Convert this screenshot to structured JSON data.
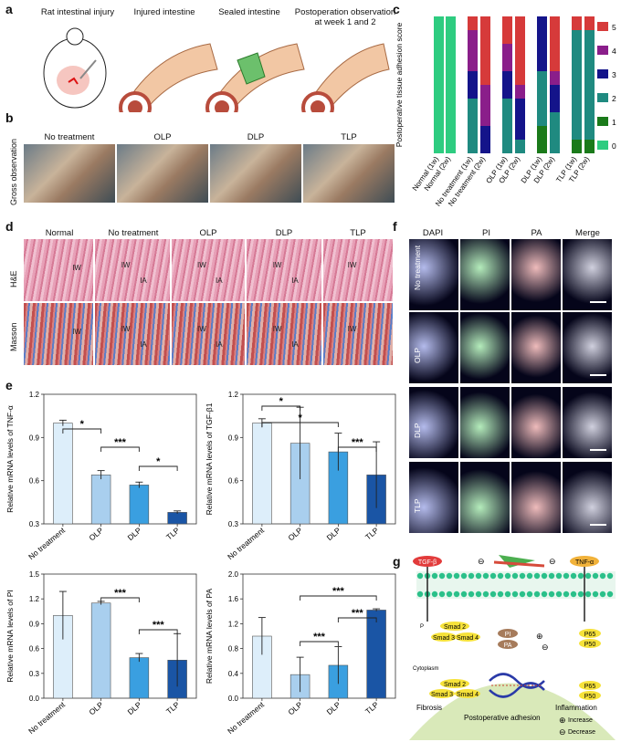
{
  "panels": {
    "a": "a",
    "b": "b",
    "c": "c",
    "d": "d",
    "e": "e",
    "f": "f",
    "g": "g"
  },
  "panel_a": {
    "steps": [
      "Rat intestinal injury",
      "Injured intestine",
      "Sealed intestine",
      "Postoperation observation\nat week 1 and 2"
    ]
  },
  "panel_b": {
    "row_label": "Gross observation",
    "groups": [
      "No treatment",
      "OLP",
      "DLP",
      "TLP"
    ]
  },
  "panel_d": {
    "groups": [
      "Normal",
      "No treatment",
      "OLP",
      "DLP",
      "TLP"
    ],
    "rows": [
      "H&E",
      "Masson"
    ],
    "tissue_labels": {
      "iw": "IW",
      "ia": "IA"
    }
  },
  "panel_f": {
    "channels": [
      "DAPI",
      "PI",
      "PA",
      "Merge"
    ],
    "rows": [
      "No treatment",
      "OLP",
      "DLP",
      "TLP"
    ]
  },
  "panel_g": {
    "tgf": "TGF-β",
    "tnf": "TNF-α",
    "smad2_p": "Smad 2",
    "smad3": "Smad 3",
    "smad4": "Smad 4",
    "p_mark": "P",
    "pi": "PI",
    "pa": "PA",
    "p65": "P65",
    "p50": "P50",
    "cytoplasm": "Cytoplasm",
    "fibrosis": "Fibrosis",
    "inflammation": "Inflammation",
    "adhesion": "Postoperative adhesion",
    "minus": "⊖",
    "plus": "⊕",
    "increase": "Increase",
    "decrease": "Decrease"
  },
  "colors": {
    "bar1": "#ddeefa",
    "bar2": "#a9cfee",
    "bar3": "#3a9fe0",
    "bar4": "#1a55a5"
  },
  "chart_data": [
    {
      "id": "c",
      "type": "bar",
      "stacked": true,
      "ylabel": "Postoperative tissue adhesion score",
      "categories": [
        "Normal (1w)",
        "Normal (2w)",
        "No treatment (1w)",
        "No treatment (2w)",
        "OLP (1w)",
        "OLP (2w)",
        "DLP (1w)",
        "DLP (2w)",
        "TLP (1w)",
        "TLP (2w)"
      ],
      "legend": [
        "5",
        "4",
        "3",
        "2",
        "1",
        "0"
      ],
      "legend_colors": [
        "#d63a3a",
        "#8a1e8a",
        "#14148a",
        "#1f8a80",
        "#1a7a1a",
        "#2ecc80"
      ],
      "ylim": [
        0,
        10
      ],
      "series": [
        {
          "score": "0",
          "values": [
            10,
            10,
            0,
            0,
            0,
            0,
            0,
            0,
            0,
            0
          ]
        },
        {
          "score": "1",
          "values": [
            0,
            0,
            0,
            0,
            0,
            0,
            2,
            0,
            1,
            1
          ]
        },
        {
          "score": "2",
          "values": [
            0,
            0,
            4,
            0,
            4,
            1,
            4,
            3,
            8,
            8
          ]
        },
        {
          "score": "3",
          "values": [
            0,
            0,
            2,
            2,
            2,
            3,
            4,
            2,
            0,
            0
          ]
        },
        {
          "score": "4",
          "values": [
            0,
            0,
            3,
            3,
            2,
            1,
            0,
            1,
            0,
            0
          ]
        },
        {
          "score": "5",
          "values": [
            0,
            0,
            1,
            5,
            2,
            5,
            0,
            4,
            1,
            1
          ]
        }
      ]
    },
    {
      "id": "e1",
      "type": "bar",
      "ylabel": "Relative mRNA levels of TNF-α",
      "categories": [
        "No treatment",
        "OLP",
        "DLP",
        "TLP"
      ],
      "values": [
        1.0,
        0.64,
        0.57,
        0.38
      ],
      "errors": [
        0.02,
        0.03,
        0.02,
        0.01
      ],
      "ylim": [
        0.3,
        1.2
      ],
      "yticks": [
        "0.3",
        "0.6",
        "0.9",
        "1.2"
      ],
      "sig": [
        {
          "from": 0,
          "to": 1,
          "label": "*"
        },
        {
          "from": 1,
          "to": 2,
          "label": "***"
        },
        {
          "from": 2,
          "to": 3,
          "label": "*"
        }
      ]
    },
    {
      "id": "e2",
      "type": "bar",
      "ylabel": "Relative mRNA levels of TGF-β1",
      "categories": [
        "No treatment",
        "OLP",
        "DLP",
        "TLP"
      ],
      "values": [
        1.0,
        0.86,
        0.8,
        0.64
      ],
      "errors": [
        0.03,
        0.25,
        0.13,
        0.23
      ],
      "ylim": [
        0.3,
        1.2
      ],
      "yticks": [
        "0.3",
        "0.6",
        "0.9",
        "1.2"
      ],
      "sig": [
        {
          "from": 0,
          "to": 1,
          "label": "*"
        },
        {
          "from": 0,
          "to": 2,
          "label": "*"
        },
        {
          "from": 2,
          "to": 3,
          "label": "***"
        }
      ]
    },
    {
      "id": "e3",
      "type": "bar",
      "ylabel": "Relative mRNA levels of PI",
      "categories": [
        "No treatment",
        "OLP",
        "DLP",
        "TLP"
      ],
      "values": [
        1.0,
        1.15,
        0.49,
        0.46
      ],
      "errors": [
        0.29,
        0.02,
        0.05,
        0.32
      ],
      "ylim": [
        0.0,
        1.5
      ],
      "yticks": [
        "0.0",
        "0.3",
        "0.6",
        "0.9",
        "1.2",
        "1.5"
      ],
      "sig": [
        {
          "from": 1,
          "to": 2,
          "label": "***"
        },
        {
          "from": 2,
          "to": 3,
          "label": "***"
        }
      ]
    },
    {
      "id": "e4",
      "type": "bar",
      "ylabel": "Relative mRNA levels of PA",
      "categories": [
        "No treatment",
        "OLP",
        "DLP",
        "TLP"
      ],
      "values": [
        1.0,
        0.38,
        0.53,
        1.42
      ],
      "errors": [
        0.3,
        0.28,
        0.3,
        0.02
      ],
      "ylim": [
        0.0,
        2.0
      ],
      "yticks": [
        "0.0",
        "0.4",
        "0.8",
        "1.2",
        "1.6",
        "2.0"
      ],
      "sig": [
        {
          "from": 1,
          "to": 2,
          "label": "***"
        },
        {
          "from": 2,
          "to": 3,
          "label": "***"
        },
        {
          "from": 1,
          "to": 3,
          "label": "***"
        }
      ]
    }
  ]
}
